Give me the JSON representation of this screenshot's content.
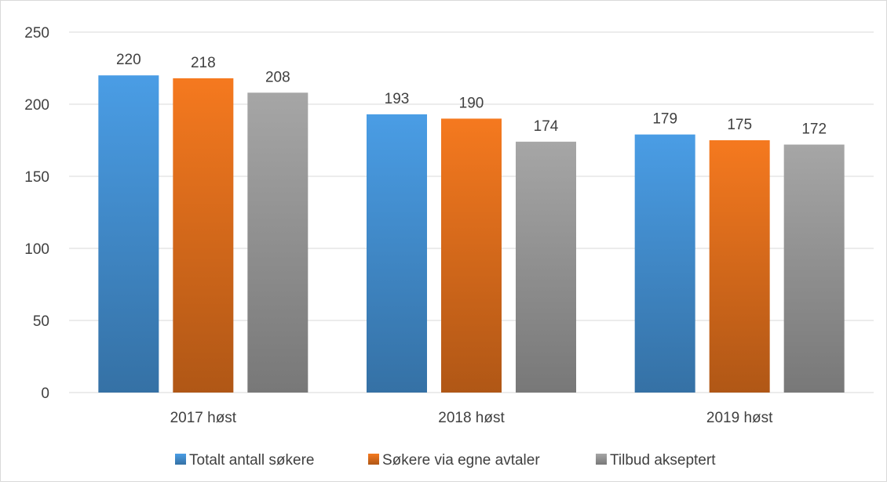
{
  "chart_data": {
    "type": "bar",
    "categories": [
      "2017 høst",
      "2018 høst",
      "2019 høst"
    ],
    "series": [
      {
        "name": "Totalt antall søkere",
        "values": [
          220,
          193,
          179
        ],
        "color": "#4a9de5"
      },
      {
        "name": "Søkere via egne avtaler",
        "values": [
          218,
          190,
          175
        ],
        "color": "#f5791f"
      },
      {
        "name": "Tilbud akseptert",
        "values": [
          208,
          174,
          172
        ],
        "color": "#a6a6a6"
      }
    ],
    "y_ticks": [
      "0",
      "50",
      "100",
      "150",
      "200",
      "250"
    ],
    "ylim": [
      0,
      250
    ],
    "grid": true,
    "legend_position": "bottom",
    "data_labels": true
  }
}
